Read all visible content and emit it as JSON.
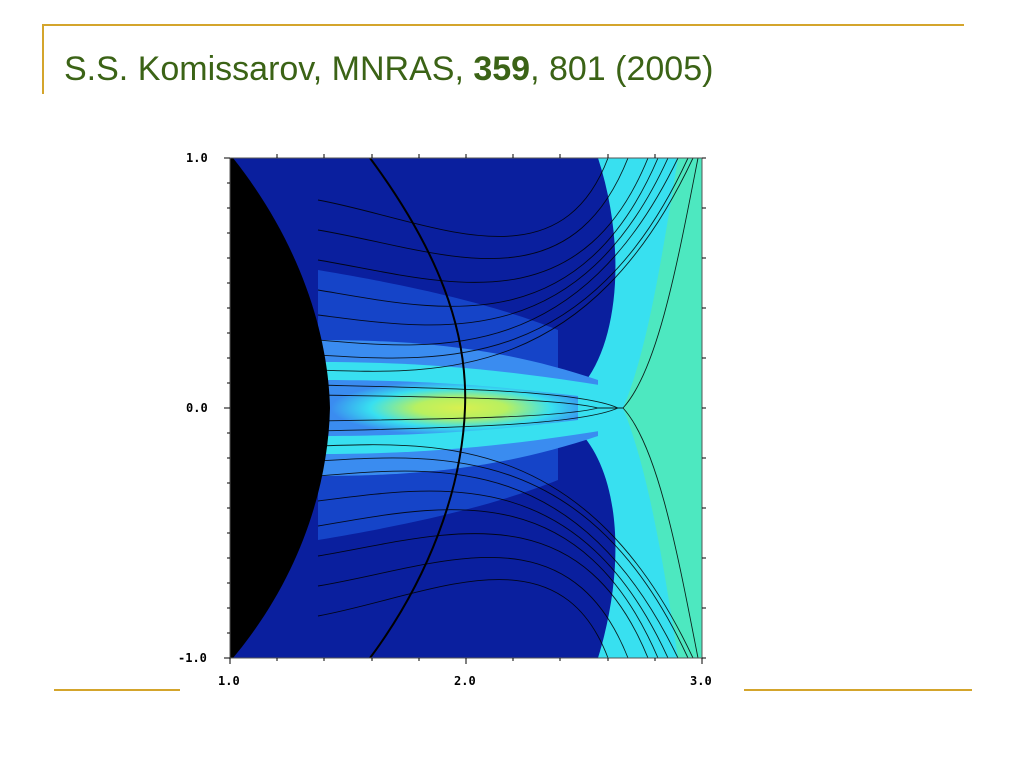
{
  "slide": {
    "title_prefix": "S.S. Komissarov, MNRAS, ",
    "title_volume": "359",
    "title_suffix": ", 801 (2005)"
  },
  "figure": {
    "y_ticks": [
      "1.0",
      "0.0",
      "-1.0"
    ],
    "x_ticks": [
      "1.0",
      "2.0",
      "3.0"
    ],
    "colors": {
      "dark_blue": "#0a1f9e",
      "mid_blue": "#1544c8",
      "light_blue": "#3a8cf0",
      "cyan": "#38e0f0",
      "aqua_green": "#4de8c0",
      "yellow_green": "#d8f050",
      "black": "#000000"
    }
  },
  "chart_data": {
    "type": "heatmap",
    "xlim": [
      1.0,
      3.0
    ],
    "ylim": [
      -1.0,
      1.0
    ]
  }
}
